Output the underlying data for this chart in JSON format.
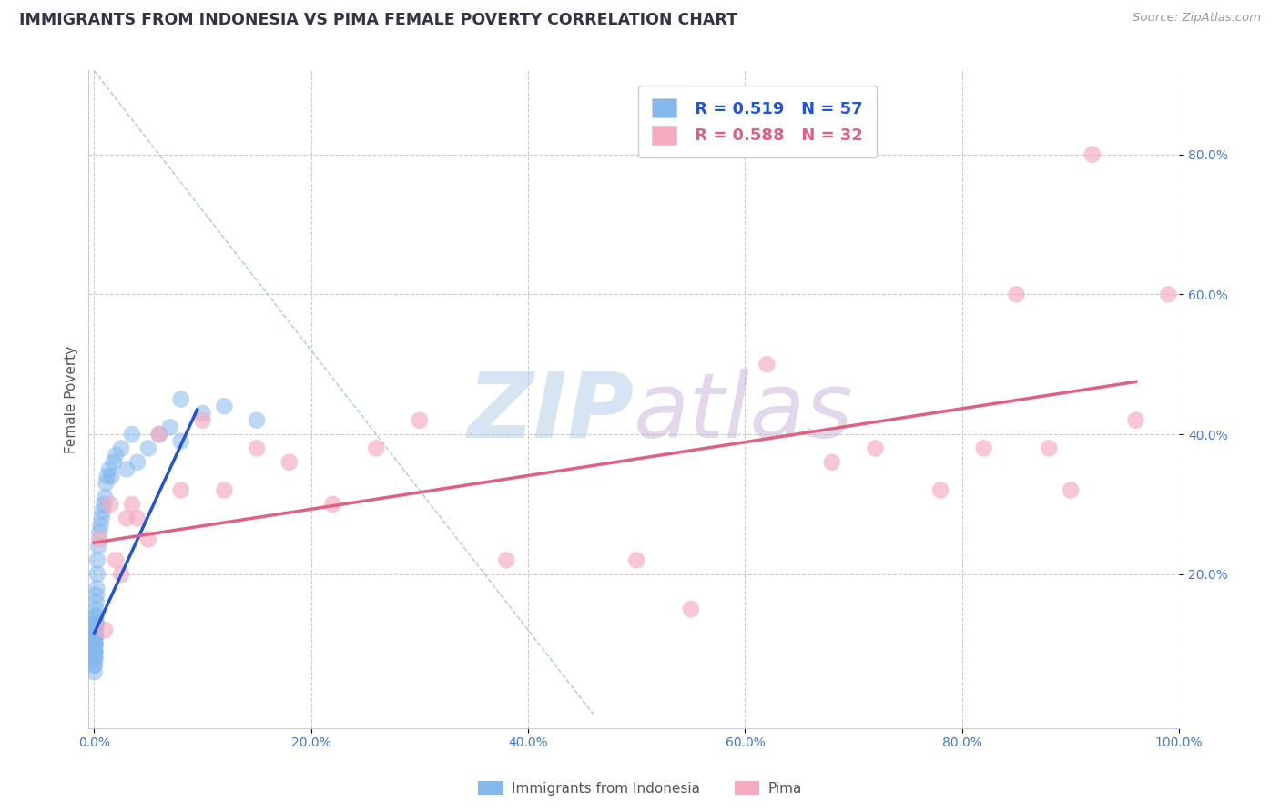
{
  "title": "IMMIGRANTS FROM INDONESIA VS PIMA FEMALE POVERTY CORRELATION CHART",
  "source_text": "Source: ZipAtlas.com",
  "xlabel_blue": "Immigrants from Indonesia",
  "xlabel_pink": "Pima",
  "ylabel": "Female Poverty",
  "xlim": [
    -0.005,
    1.0
  ],
  "ylim": [
    -0.02,
    0.92
  ],
  "xticks": [
    0.0,
    0.2,
    0.4,
    0.6,
    0.8,
    1.0
  ],
  "xtick_labels": [
    "0.0%",
    "20.0%",
    "40.0%",
    "60.0%",
    "80.0%",
    "100.0%"
  ],
  "yticks": [
    0.2,
    0.4,
    0.6,
    0.8
  ],
  "ytick_labels": [
    "20.0%",
    "40.0%",
    "60.0%",
    "80.0%"
  ],
  "r_blue": 0.519,
  "n_blue": 57,
  "r_pink": 0.588,
  "n_pink": 32,
  "blue_color": "#85b8ed",
  "pink_color": "#f5aabf",
  "trend_blue": "#2255cc",
  "trend_pink": "#e06080",
  "diag_color": "#99bbdd",
  "blue_scatter_x": [
    0.0002,
    0.0003,
    0.0003,
    0.0004,
    0.0004,
    0.0005,
    0.0005,
    0.0006,
    0.0006,
    0.0007,
    0.0007,
    0.0008,
    0.0008,
    0.0009,
    0.0009,
    0.001,
    0.001,
    0.0012,
    0.0012,
    0.0013,
    0.0014,
    0.0015,
    0.0015,
    0.0016,
    0.0017,
    0.0018,
    0.002,
    0.002,
    0.0022,
    0.0025,
    0.003,
    0.003,
    0.004,
    0.005,
    0.006,
    0.007,
    0.008,
    0.009,
    0.01,
    0.011,
    0.012,
    0.014,
    0.016,
    0.018,
    0.02,
    0.025,
    0.03,
    0.035,
    0.04,
    0.05,
    0.06,
    0.07,
    0.08,
    0.1,
    0.12,
    0.15,
    0.08
  ],
  "blue_scatter_y": [
    0.06,
    0.07,
    0.09,
    0.08,
    0.1,
    0.07,
    0.09,
    0.08,
    0.1,
    0.09,
    0.11,
    0.1,
    0.12,
    0.08,
    0.11,
    0.09,
    0.12,
    0.1,
    0.13,
    0.11,
    0.12,
    0.11,
    0.14,
    0.13,
    0.15,
    0.14,
    0.13,
    0.16,
    0.17,
    0.18,
    0.2,
    0.22,
    0.24,
    0.26,
    0.27,
    0.28,
    0.29,
    0.3,
    0.31,
    0.33,
    0.34,
    0.35,
    0.34,
    0.36,
    0.37,
    0.38,
    0.35,
    0.4,
    0.36,
    0.38,
    0.4,
    0.41,
    0.39,
    0.43,
    0.44,
    0.42,
    0.45
  ],
  "pink_scatter_x": [
    0.005,
    0.01,
    0.015,
    0.02,
    0.025,
    0.03,
    0.035,
    0.04,
    0.05,
    0.06,
    0.08,
    0.1,
    0.12,
    0.15,
    0.18,
    0.22,
    0.26,
    0.3,
    0.38,
    0.5,
    0.55,
    0.62,
    0.68,
    0.72,
    0.78,
    0.82,
    0.85,
    0.88,
    0.9,
    0.92,
    0.96,
    0.99
  ],
  "pink_scatter_y": [
    0.25,
    0.12,
    0.3,
    0.22,
    0.2,
    0.28,
    0.3,
    0.28,
    0.25,
    0.4,
    0.32,
    0.42,
    0.32,
    0.38,
    0.36,
    0.3,
    0.38,
    0.42,
    0.22,
    0.22,
    0.15,
    0.5,
    0.36,
    0.38,
    0.32,
    0.38,
    0.6,
    0.38,
    0.32,
    0.8,
    0.42,
    0.6
  ],
  "blue_line_x": [
    0.0,
    0.095
  ],
  "blue_line_y": [
    0.115,
    0.435
  ],
  "pink_line_x": [
    0.0,
    0.96
  ],
  "pink_line_y": [
    0.245,
    0.475
  ],
  "diag_line_x": [
    0.0,
    0.46
  ],
  "diag_line_y": [
    0.92,
    0.0
  ]
}
